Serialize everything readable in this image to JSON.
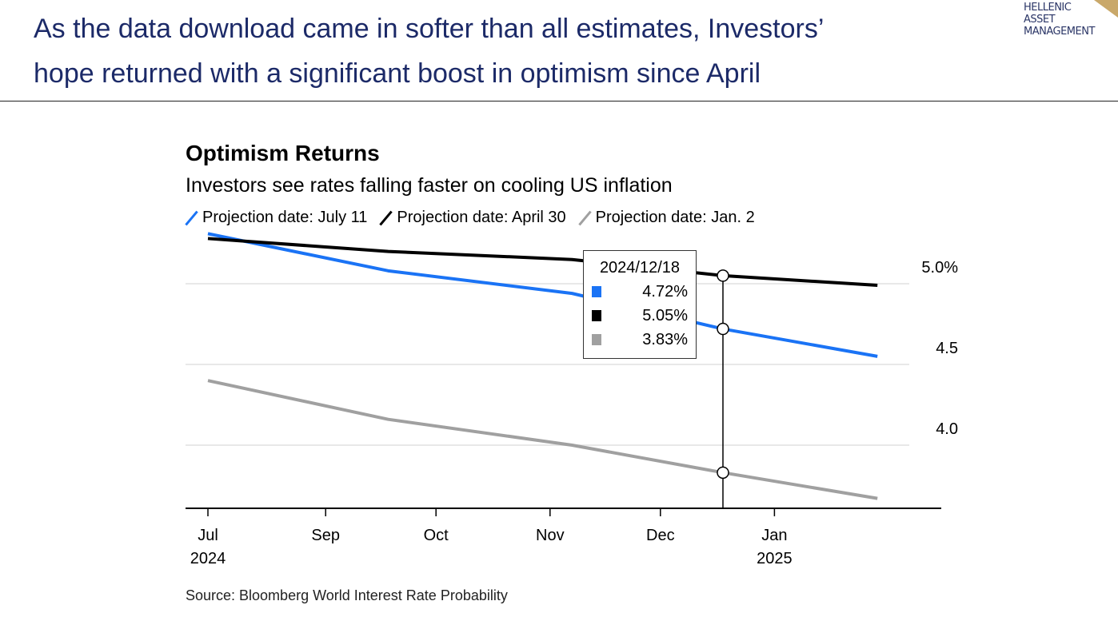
{
  "slide": {
    "headline_line1": "As the data download came in softer than all estimates, Investors’",
    "headline_line2": "hope returned with a significant boost in optimism since April",
    "logo_lines": [
      "HELLENIC",
      "ASSET",
      "MANAGEMENT"
    ]
  },
  "chart_data": {
    "type": "line",
    "title": "Optimism Returns",
    "subtitle": "Investors see rates falling faster on cooling US inflation",
    "source": "Source: Bloomberg World Interest Rate Probability",
    "legend_placement": "top-left",
    "grid": true,
    "x": [
      "2024-07-31",
      "2024-09-18",
      "2024-11-07",
      "2024-12-18",
      "2025-01-29"
    ],
    "series": [
      {
        "name": "Projection date: July 11",
        "color": "#1a73f5",
        "values": [
          5.31,
          5.08,
          4.94,
          4.72,
          4.55
        ]
      },
      {
        "name": "Projection date: April 30",
        "color": "#000000",
        "values": [
          5.28,
          5.2,
          5.15,
          5.05,
          4.99
        ]
      },
      {
        "name": "Projection date: Jan. 2",
        "color": "#a0a0a0",
        "values": [
          4.4,
          4.16,
          4.0,
          3.83,
          3.67
        ]
      }
    ],
    "y_ticks": [
      {
        "value": 5.0,
        "label": "5.0%"
      },
      {
        "value": 4.5,
        "label": "4.5"
      },
      {
        "value": 4.0,
        "label": "4.0"
      }
    ],
    "x_ticks": [
      {
        "date": "2024-07-31",
        "label": "Jul",
        "year": "2024"
      },
      {
        "date": "2024-09-01",
        "label": "Sep",
        "year": ""
      },
      {
        "date": "2024-10-01",
        "label": "Oct",
        "year": ""
      },
      {
        "date": "2024-11-01",
        "label": "Nov",
        "year": ""
      },
      {
        "date": "2024-12-01",
        "label": "Dec",
        "year": ""
      },
      {
        "date": "2025-01-01",
        "label": "Jan",
        "year": "2025"
      }
    ],
    "tooltip": {
      "date": "2024/12/18",
      "x": "2024-12-18",
      "rows": [
        {
          "color": "#1a73f5",
          "value": "4.72%"
        },
        {
          "color": "#000000",
          "value": "5.05%"
        },
        {
          "color": "#a0a0a0",
          "value": "3.83%"
        }
      ]
    }
  }
}
